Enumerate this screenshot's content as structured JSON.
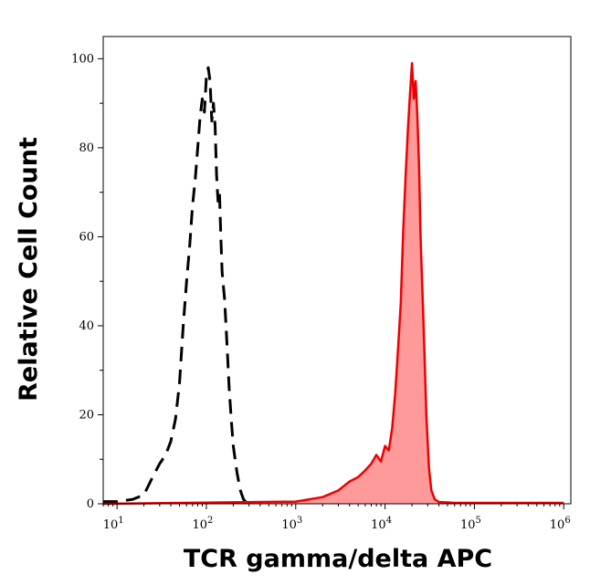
{
  "chart_data": {
    "type": "area",
    "title": "",
    "xlabel": "TCR gamma/delta APC",
    "ylabel": "Relative Cell Count",
    "x_scale": "log",
    "xlim": [
      7,
      1200000
    ],
    "ylim": [
      0,
      105
    ],
    "x_ticks": [
      {
        "base": "10",
        "exp": "1",
        "value": 10
      },
      {
        "base": "10",
        "exp": "2",
        "value": 100
      },
      {
        "base": "10",
        "exp": "3",
        "value": 1000
      },
      {
        "base": "10",
        "exp": "4",
        "value": 10000
      },
      {
        "base": "10",
        "exp": "5",
        "value": 100000
      },
      {
        "base": "10",
        "exp": "6",
        "value": 1000000
      }
    ],
    "y_ticks": [
      {
        "label": "0",
        "value": 0
      },
      {
        "label": "20",
        "value": 20
      },
      {
        "label": "40",
        "value": 40
      },
      {
        "label": "60",
        "value": 60
      },
      {
        "label": "80",
        "value": 80
      },
      {
        "label": "100",
        "value": 100
      }
    ],
    "grid": false,
    "legend": "none",
    "series": [
      {
        "style": "dashed",
        "color": "#000000",
        "fill": "none",
        "x": [
          7,
          10,
          15,
          20,
          25,
          30,
          35,
          40,
          45,
          50,
          55,
          60,
          65,
          70,
          75,
          80,
          85,
          90,
          95,
          100,
          105,
          110,
          115,
          120,
          125,
          130,
          135,
          140,
          145,
          150,
          160,
          170,
          180,
          190,
          200,
          220,
          240,
          260,
          280,
          300
        ],
        "y": [
          0.5,
          0.5,
          1.0,
          2.0,
          6.0,
          9.0,
          11.0,
          14.0,
          19.0,
          27.0,
          40.0,
          50.0,
          58.0,
          67.0,
          73.0,
          80.0,
          87.0,
          91.0,
          88.0,
          96.0,
          98.0,
          95.0,
          86.0,
          90.0,
          85.0,
          74.0,
          68.0,
          70.0,
          60.0,
          52.0,
          46.0,
          36.0,
          26.0,
          19.0,
          13.0,
          7.0,
          3.0,
          1.0,
          0.3,
          0.0
        ]
      },
      {
        "style": "solid",
        "color": "#ee0000",
        "fill": "#ff9a9a",
        "x": [
          7,
          1000,
          2000,
          3000,
          4000,
          5000,
          6000,
          7000,
          8000,
          9000,
          10000,
          11000,
          12000,
          13000,
          14000,
          15000,
          16000,
          17000,
          18000,
          19000,
          20000,
          21000,
          22000,
          23000,
          24000,
          25000,
          27000,
          29000,
          31000,
          33000,
          36000,
          40000,
          60000,
          100000,
          1000000
        ],
        "y": [
          0.0,
          0.5,
          1.5,
          3.0,
          5.0,
          6.0,
          7.5,
          9.0,
          11.0,
          9.5,
          13.0,
          12.0,
          17.0,
          25.0,
          35.0,
          45.0,
          62.0,
          74.0,
          84.0,
          92.0,
          99.0,
          91.0,
          95.0,
          87.0,
          76.0,
          60.0,
          40.0,
          20.0,
          8.0,
          3.0,
          1.0,
          0.4,
          0.2,
          0.2,
          0.2
        ]
      }
    ]
  }
}
